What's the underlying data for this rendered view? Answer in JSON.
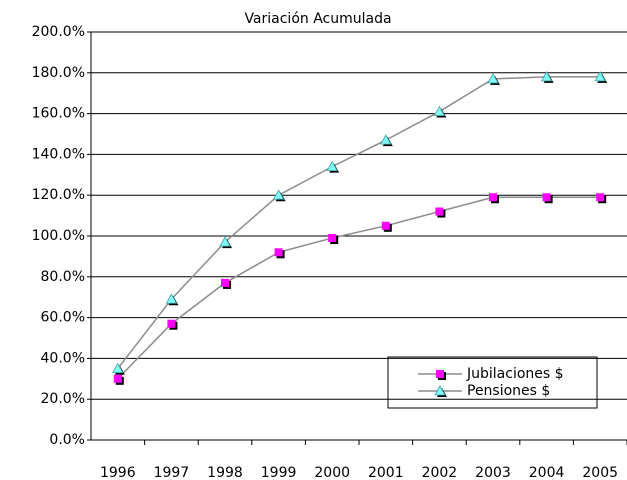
{
  "chart_data": {
    "type": "line",
    "title": "Variación Acumulada",
    "categories": [
      "1996",
      "1997",
      "1998",
      "1999",
      "2000",
      "2001",
      "2002",
      "2003",
      "2004",
      "2005"
    ],
    "series": [
      {
        "name": "Jubilaciones $",
        "color": "#ff00ff",
        "marker": "square",
        "values": [
          30,
          57,
          77,
          92,
          99,
          105,
          112,
          119,
          119,
          119
        ]
      },
      {
        "name": "Pensiones $",
        "color": "#80ffff",
        "marker": "triangle",
        "values": [
          35,
          69,
          97,
          120,
          134,
          147,
          161,
          177,
          178,
          178
        ]
      }
    ],
    "line_color": "#8c8c8c",
    "ylim": [
      0,
      200
    ],
    "yticks": [
      {
        "value": 0,
        "label": "0.0%"
      },
      {
        "value": 20,
        "label": "20.0%"
      },
      {
        "value": 40,
        "label": "40.0%"
      },
      {
        "value": 60,
        "label": "60.0%"
      },
      {
        "value": 80,
        "label": "80.0%"
      },
      {
        "value": 100,
        "label": "100.0%"
      },
      {
        "value": 120,
        "label": "120.0%"
      },
      {
        "value": 140,
        "label": "140.0%"
      },
      {
        "value": 160,
        "label": "160.0%"
      },
      {
        "value": 180,
        "label": "180.0%"
      },
      {
        "value": 200,
        "label": "200.0%"
      }
    ],
    "grid": true
  }
}
